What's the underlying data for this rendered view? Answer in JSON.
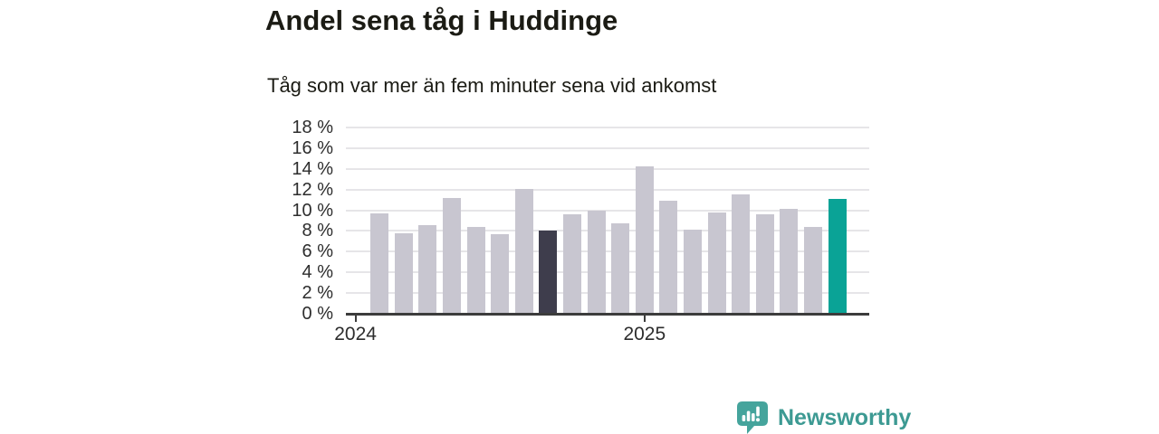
{
  "header": {
    "title": "Andel sena tåg i Huddinge",
    "subtitle": "Tåg som var mer än fem minuter sena vid ankomst"
  },
  "footer": {
    "brand": "Newsworthy"
  },
  "colors": {
    "text": "#1b1b14",
    "axis_text": "#2d2d2d",
    "axis": "#3c3c3c",
    "grid": "#e6e5e8",
    "bar": "#c8c6d0",
    "bar_dark": "#3e3d4c",
    "accent": "#0aa396",
    "brand": "#45a49c",
    "brand_text": "#3d9a93"
  },
  "chart_data": {
    "type": "bar",
    "title": "Andel sena tåg i Huddinge",
    "subtitle": "Tåg som var mer än fem minuter sena vid ankomst",
    "unit": "%",
    "values": [
      9.7,
      7.8,
      8.6,
      11.2,
      8.4,
      7.7,
      12.1,
      8.0,
      9.6,
      10.0,
      8.7,
      14.2,
      10.9,
      8.1,
      9.8,
      11.5,
      9.6,
      10.1,
      8.4,
      11.1
    ],
    "highlight_dark_index": 7,
    "highlight_latest_index": 19,
    "ylim": [
      0,
      18
    ],
    "ytick_step": 2,
    "ytick_suffix": " %",
    "x_tick_labels": [
      "2024",
      "2025"
    ],
    "x_tick_slots": [
      0,
      12
    ],
    "first_bar_slot": 1,
    "grid": true,
    "legend": "none"
  }
}
